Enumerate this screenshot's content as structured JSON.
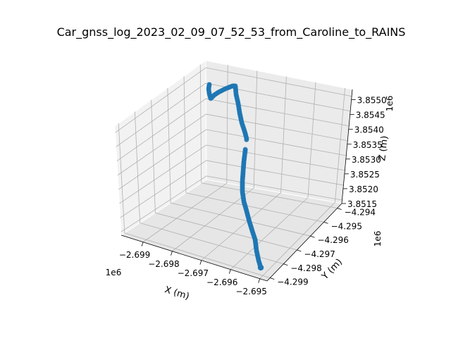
{
  "chart_data": {
    "type": "scatter",
    "title": "Car_gnss_log_2023_02_09_07_52_53_from_Caroline_to_RAINS",
    "xlabel": "X (m)",
    "ylabel": "Y (m)",
    "zlabel": "Z (m)",
    "x_offset_label": "1e6",
    "y_offset_label": "1e6",
    "z_offset_label": "1e6",
    "x_ticks": [
      "−2.699",
      "−2.698",
      "−2.697",
      "−2.696",
      "−2.695"
    ],
    "y_ticks": [
      "−4.299",
      "−4.298",
      "−4.297",
      "−4.296",
      "−4.295",
      "−4.294"
    ],
    "z_ticks": [
      "3.8515",
      "3.8520",
      "3.8525",
      "3.8530",
      "3.8535",
      "3.8540",
      "3.8545",
      "3.8550"
    ],
    "grid": true,
    "series_color": "#1f77b4",
    "trajectory_screen_path": [
      [
        370,
        380
      ],
      [
        367,
        370
      ],
      [
        364,
        356
      ],
      [
        362,
        340
      ],
      [
        358,
        328
      ],
      [
        354,
        315
      ],
      [
        350,
        300
      ],
      [
        346,
        286
      ],
      [
        344,
        272
      ],
      [
        344,
        258
      ],
      [
        345,
        244
      ],
      [
        346,
        230
      ],
      [
        348,
        214
      ],
      [
        350,
        197
      ],
      [
        347,
        186
      ],
      [
        343,
        174
      ],
      [
        340,
        160
      ],
      [
        338,
        147
      ],
      [
        335,
        134
      ],
      [
        334,
        122
      ],
      [
        330,
        122
      ],
      [
        320,
        126
      ],
      [
        310,
        131
      ],
      [
        304,
        135
      ],
      [
        299,
        140
      ],
      [
        297,
        133
      ],
      [
        296,
        126
      ],
      [
        297,
        120
      ]
    ]
  }
}
